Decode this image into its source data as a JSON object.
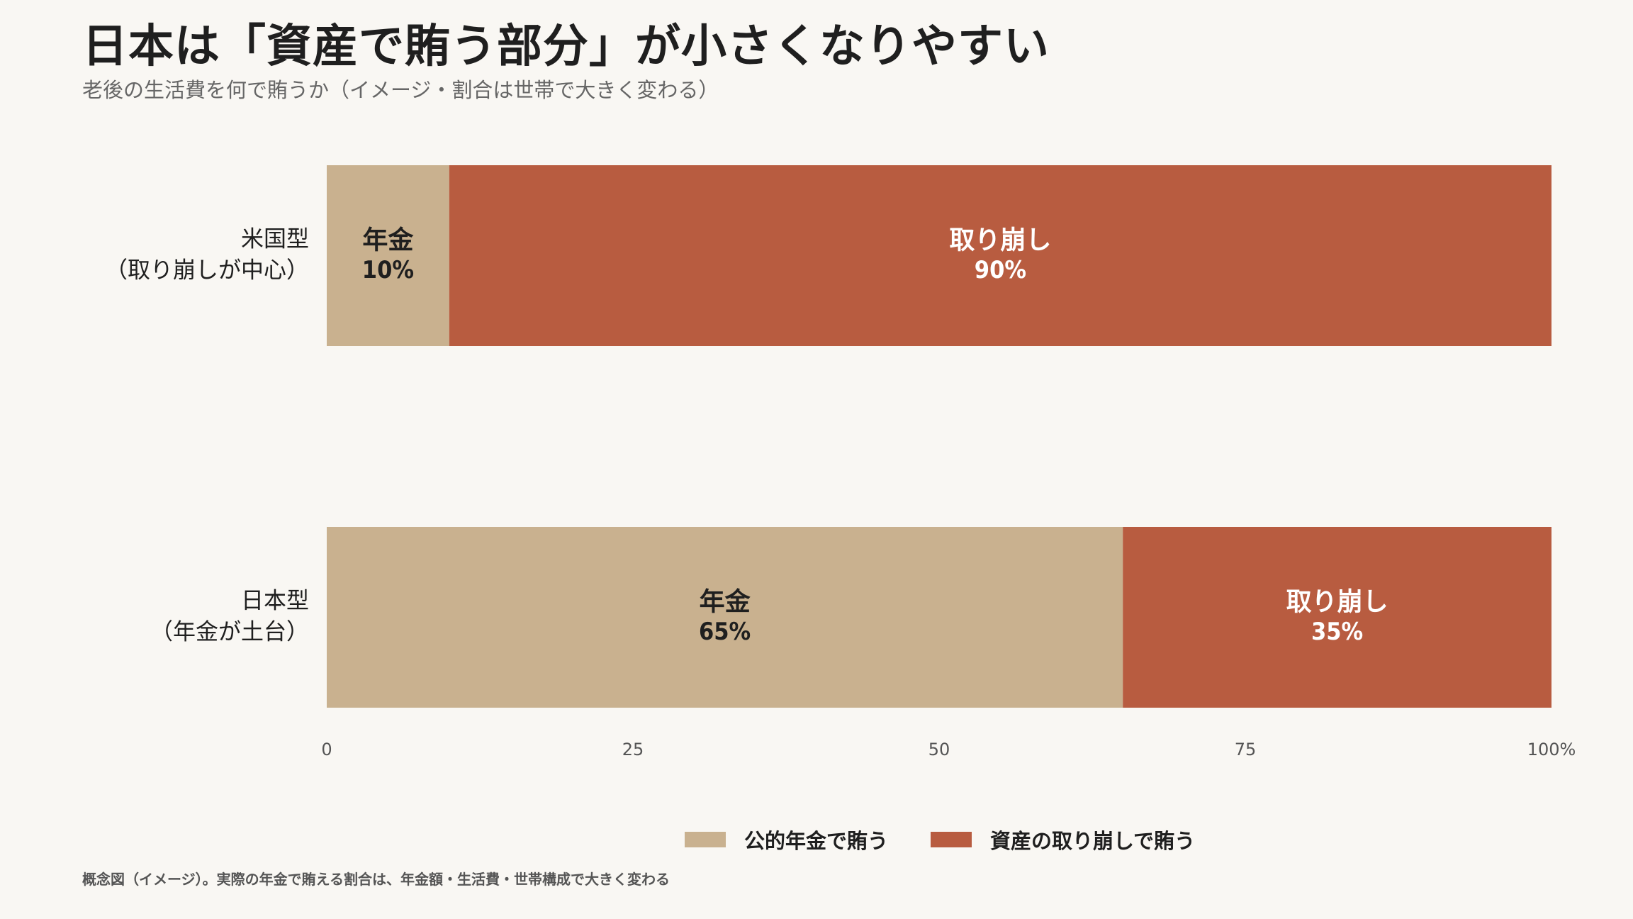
{
  "title": "日本は「資産で賄う部分」が小さくなりやすい",
  "subtitle": "老後の生活費を何で賄うか（イメージ・割合は世帯で大きく変わる）",
  "footnote": "概念図（イメージ）。実際の年金で賄える割合は、年金額・生活費・世帯構成で大きく変わる",
  "colors": {
    "pension": "#c9b18f",
    "withdrawal": "#b85c40",
    "background": "#f9f7f3"
  },
  "legend": [
    {
      "label": "公的年金で賄う",
      "color": "#c9b18f"
    },
    {
      "label": "資産の取り崩しで賄う",
      "color": "#b85c40"
    }
  ],
  "chart_data": {
    "type": "bar",
    "orientation": "horizontal",
    "stacked": true,
    "categories": [
      {
        "line1": "米国型",
        "line2": "（取り崩しが中心）"
      },
      {
        "line1": "日本型",
        "line2": "（年金が土台）"
      }
    ],
    "series": [
      {
        "name": "公的年金で賄う",
        "segment_label": "年金",
        "values": [
          10,
          65
        ],
        "value_labels": [
          "10%",
          "65%"
        ],
        "color": "#c9b18f"
      },
      {
        "name": "資産の取り崩しで賄う",
        "segment_label": "取り崩し",
        "values": [
          90,
          35
        ],
        "value_labels": [
          "90%",
          "35%"
        ],
        "color": "#b85c40"
      }
    ],
    "xlim": [
      0,
      100
    ],
    "xticks": [
      0,
      25,
      50,
      75,
      100
    ],
    "xtick_labels": [
      "0",
      "25",
      "50",
      "75",
      "100%"
    ],
    "grid": false,
    "legend_position": "bottom-center"
  }
}
